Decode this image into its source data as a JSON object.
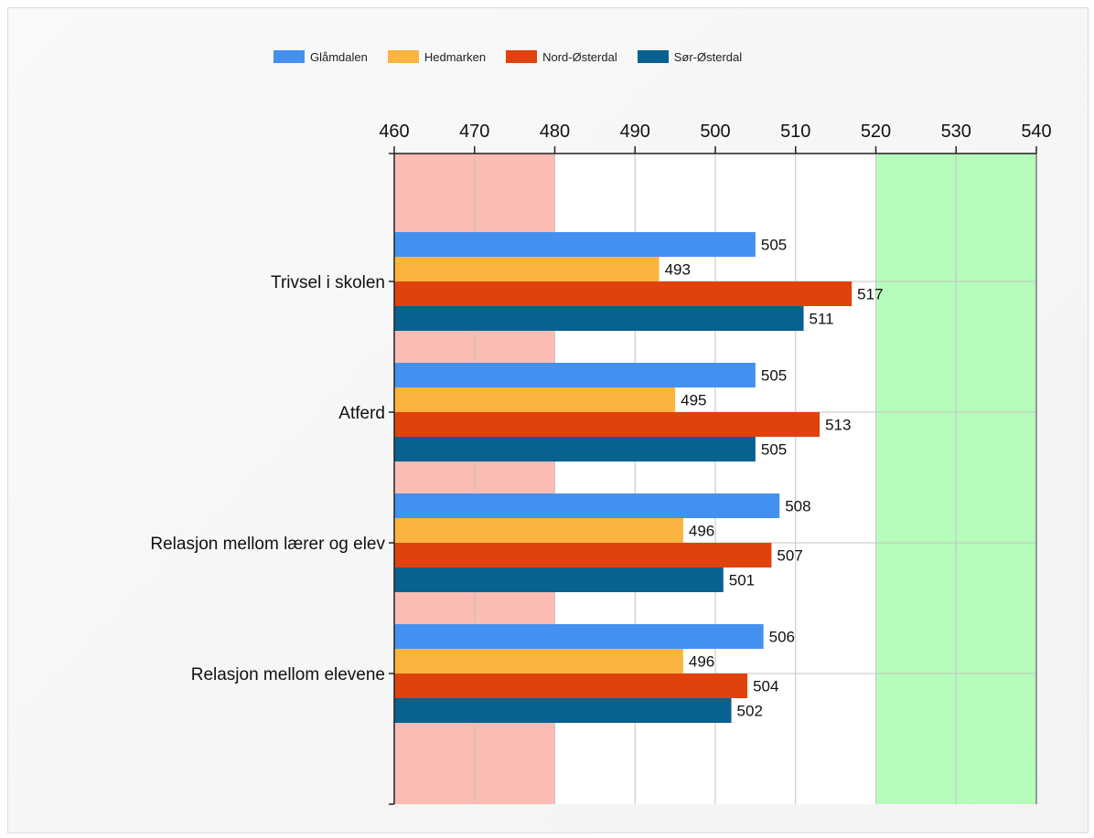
{
  "chart_data": {
    "type": "bar",
    "orientation": "horizontal",
    "xlim": [
      460,
      540
    ],
    "x_ticks": [
      460,
      470,
      480,
      490,
      500,
      510,
      520,
      530,
      540
    ],
    "categories": [
      "Trivsel i skolen",
      "Atferd",
      "Relasjon mellom lærer og elev",
      "Relasjon mellom elevene"
    ],
    "series": [
      {
        "name": "Glåmdalen",
        "color": "#4490f0",
        "values": [
          505,
          505,
          508,
          506
        ]
      },
      {
        "name": "Hedmarken",
        "color": "#fbb440",
        "values": [
          493,
          495,
          496,
          496
        ]
      },
      {
        "name": "Nord-Østerdal",
        "color": "#e0420c",
        "values": [
          517,
          513,
          507,
          504
        ]
      },
      {
        "name": "Sør-Østerdal",
        "color": "#07628f",
        "values": [
          511,
          505,
          501,
          502
        ]
      }
    ],
    "bands": [
      {
        "from": 460,
        "to": 480,
        "color": "#fbbcb4"
      },
      {
        "from": 520,
        "to": 540,
        "color": "#b6fcbb"
      }
    ],
    "grid": true,
    "legend_position": "top"
  }
}
